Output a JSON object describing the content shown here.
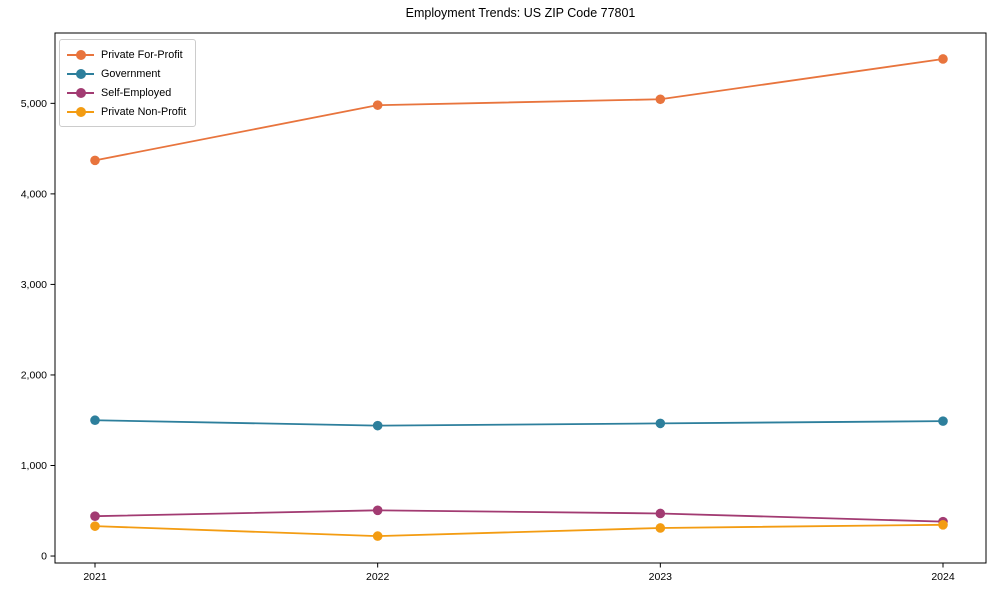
{
  "title": "Employment Trends: US ZIP Code 77801",
  "chart_data": {
    "type": "line",
    "title": "Employment Trends: US ZIP Code 77801",
    "xlabel": "",
    "ylabel": "",
    "x": [
      2021,
      2022,
      2023,
      2024
    ],
    "x_tick_labels": [
      "2021",
      "2022",
      "2023",
      "2024"
    ],
    "y_ticks": [
      0,
      1000,
      2000,
      3000,
      4000,
      5000
    ],
    "y_tick_labels": [
      "0",
      "1,000",
      "2,000",
      "3,000",
      "4,000",
      "5,000"
    ],
    "ylim": [
      -77,
      5777
    ],
    "grid": false,
    "legend_position": "upper left",
    "marker": "circle",
    "series": [
      {
        "name": "Private For-Profit",
        "color": "#e8743d",
        "values": [
          4370,
          4980,
          5045,
          5490
        ]
      },
      {
        "name": "Government",
        "color": "#2d7f9c",
        "values": [
          1500,
          1440,
          1465,
          1490
        ]
      },
      {
        "name": "Self-Employed",
        "color": "#a23b72",
        "values": [
          440,
          505,
          470,
          380
        ]
      },
      {
        "name": "Private Non-Profit",
        "color": "#f39c12",
        "values": [
          330,
          220,
          310,
          345
        ]
      }
    ]
  }
}
